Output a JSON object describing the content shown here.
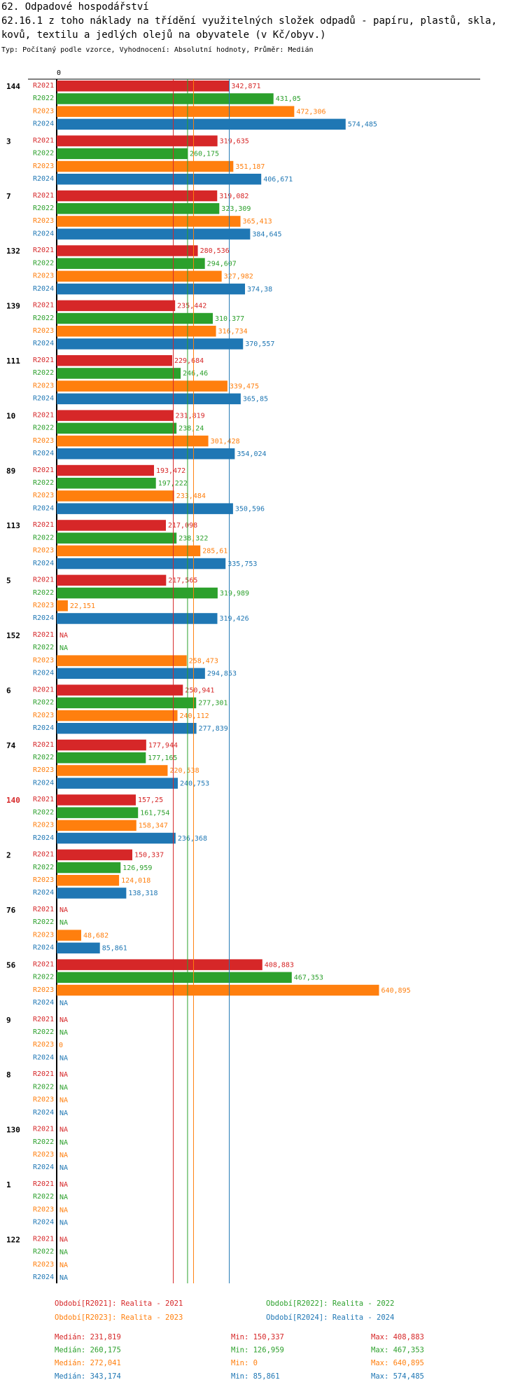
{
  "header": {
    "title": "62. Odpadové hospodářství",
    "subtitle": "62.16.1 z toho náklady na třídění využitelných složek odpadů - papíru, plastů, skla, kovů, textilu a jedlých olejů na obyvatele (v Kč/obyv.)",
    "info": "Typ: Počítaný podle vzorce, Vyhodnocení: Absolutní hodnoty, Průměr: Medián"
  },
  "colors": {
    "R2021": "#d62728",
    "R2022": "#2ca02c",
    "R2023": "#ff7f0e",
    "R2024": "#1f77b4",
    "highlight_group": "#d62728"
  },
  "chart_data": {
    "type": "bar",
    "orientation": "horizontal",
    "axis_zero_label": "0",
    "xlim": [
      0,
      640.895
    ],
    "highlighted_category": "140",
    "series_names": [
      "R2021",
      "R2022",
      "R2023",
      "R2024"
    ],
    "groups": [
      {
        "label": "144",
        "values": [
          "342,871",
          "431,05",
          "472,306",
          "574,485"
        ]
      },
      {
        "label": "3",
        "values": [
          "319,635",
          "260,175",
          "351,187",
          "406,671"
        ]
      },
      {
        "label": "7",
        "values": [
          "319,082",
          "323,309",
          "365,413",
          "384,645"
        ]
      },
      {
        "label": "132",
        "values": [
          "280,536",
          "294,607",
          "327,982",
          "374,38"
        ]
      },
      {
        "label": "139",
        "values": [
          "235,442",
          "310,377",
          "316,734",
          "370,557"
        ]
      },
      {
        "label": "111",
        "values": [
          "229,684",
          "246,46",
          "339,475",
          "365,85"
        ]
      },
      {
        "label": "10",
        "values": [
          "231,819",
          "238,24",
          "301,428",
          "354,024"
        ]
      },
      {
        "label": "89",
        "values": [
          "193,472",
          "197,222",
          "233,484",
          "350,596"
        ]
      },
      {
        "label": "113",
        "values": [
          "217,098",
          "238,322",
          "285,61",
          "335,753"
        ]
      },
      {
        "label": "5",
        "values": [
          "217,565",
          "319,989",
          "22,151",
          "319,426"
        ]
      },
      {
        "label": "152",
        "values": [
          "NA",
          "NA",
          "258,473",
          "294,853"
        ]
      },
      {
        "label": "6",
        "values": [
          "250,941",
          "277,301",
          "240,112",
          "277,839"
        ]
      },
      {
        "label": "74",
        "values": [
          "177,944",
          "177,165",
          "220,538",
          "240,753"
        ]
      },
      {
        "label": "140",
        "values": [
          "157,25",
          "161,754",
          "158,347",
          "236,368"
        ]
      },
      {
        "label": "2",
        "values": [
          "150,337",
          "126,959",
          "124,018",
          "138,318"
        ]
      },
      {
        "label": "76",
        "values": [
          "NA",
          "NA",
          "48,682",
          "85,861"
        ]
      },
      {
        "label": "56",
        "values": [
          "408,883",
          "467,353",
          "640,895",
          "NA"
        ]
      },
      {
        "label": "9",
        "values": [
          "NA",
          "NA",
          "0",
          "NA"
        ]
      },
      {
        "label": "8",
        "values": [
          "NA",
          "NA",
          "NA",
          "NA"
        ]
      },
      {
        "label": "130",
        "values": [
          "NA",
          "NA",
          "NA",
          "NA"
        ]
      },
      {
        "label": "1",
        "values": [
          "NA",
          "NA",
          "NA",
          "NA"
        ]
      },
      {
        "label": "122",
        "values": [
          "NA",
          "NA",
          "NA",
          "NA"
        ]
      }
    ],
    "medians": [
      231.819,
      260.175,
      272.041,
      343.174
    ]
  },
  "legend": [
    {
      "key": "R2021",
      "text": "Období[R2021]: Realita - 2021"
    },
    {
      "key": "R2022",
      "text": "Období[R2022]: Realita - 2022"
    },
    {
      "key": "R2023",
      "text": "Období[R2023]: Realita - 2023"
    },
    {
      "key": "R2024",
      "text": "Období[R2024]: Realita - 2024"
    }
  ],
  "summary": [
    {
      "key": "R2021",
      "median": "Medián: 231,819",
      "min": "Min: 150,337",
      "max": "Max: 408,883"
    },
    {
      "key": "R2022",
      "median": "Medián: 260,175",
      "min": "Min: 126,959",
      "max": "Max: 467,353"
    },
    {
      "key": "R2023",
      "median": "Medián: 272,041",
      "min": "Min: 0",
      "max": "Max: 640,895"
    },
    {
      "key": "R2024",
      "median": "Medián: 343,174",
      "min": "Min: 85,861",
      "max": "Max: 574,485"
    }
  ]
}
